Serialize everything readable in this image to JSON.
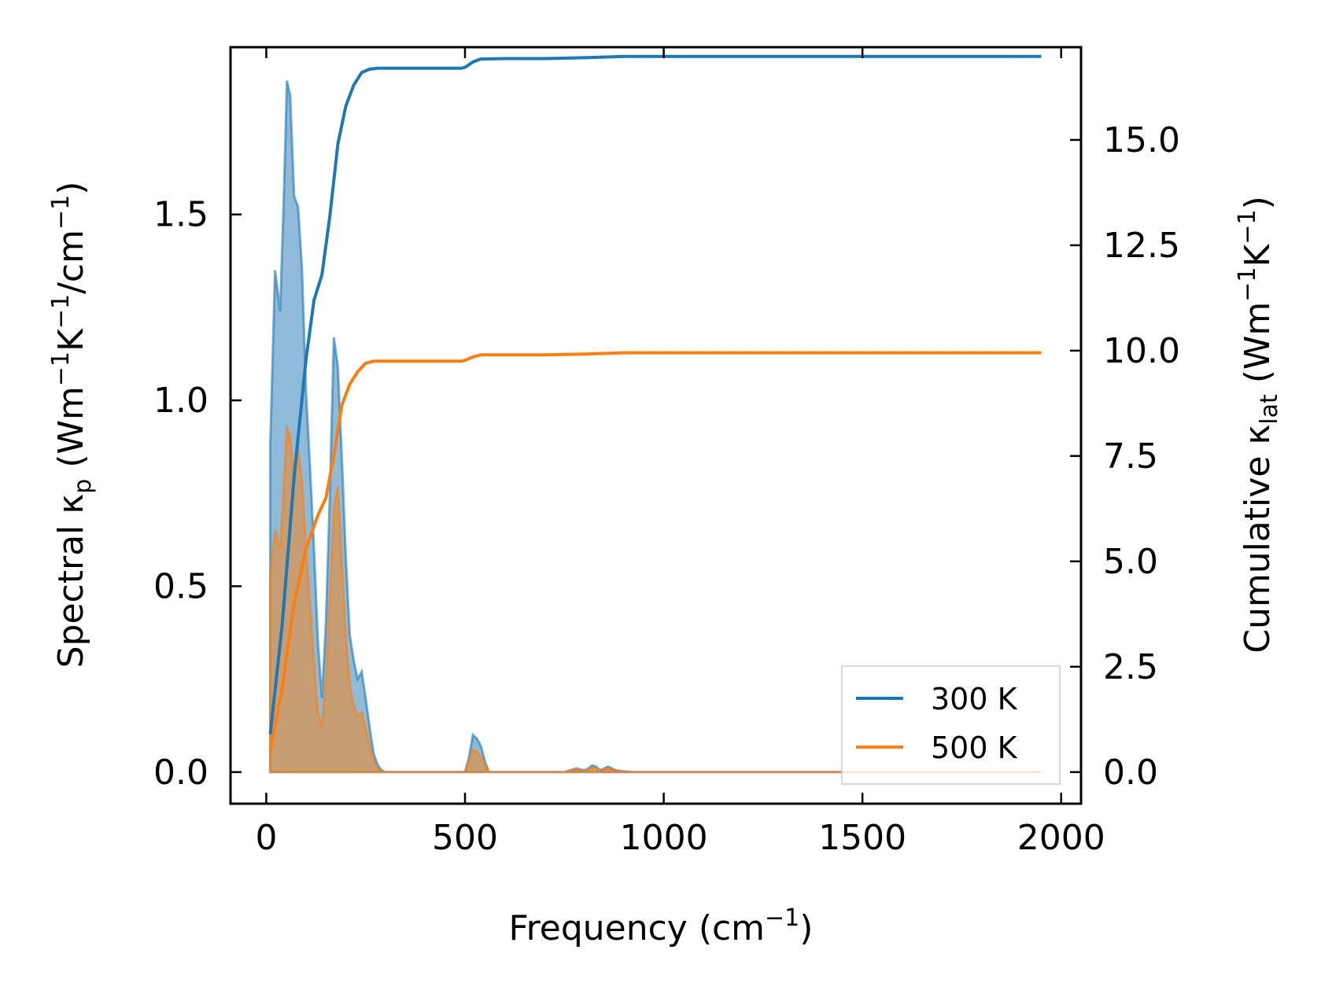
{
  "chart_data": {
    "type": "line",
    "xlabel": {
      "main": "Frequency (cm",
      "sup": "−1",
      "close": ")"
    },
    "ylabel_left": {
      "a": "Spectral κ",
      "sub": "p",
      "b": " (Wm",
      "sup1": "−1",
      "c": "K",
      "sup2": "−1",
      "d": "/cm",
      "sup3": "−1",
      "e": ")"
    },
    "ylabel_right": {
      "a": "Cumulative κ",
      "sub": "lat",
      "b": " (Wm",
      "sup1": "−1",
      "c": "K",
      "sup2": "−1",
      "d": ")"
    },
    "xlim": [
      -90,
      2050
    ],
    "ylim_left": [
      -0.085,
      1.95
    ],
    "ylim_right": [
      -0.75,
      17.2
    ],
    "x_ticks": [
      0,
      500,
      1000,
      1500,
      2000
    ],
    "x_tick_labels": [
      "0",
      "500",
      "1000",
      "1500",
      "2000"
    ],
    "y_left_ticks": [
      0.0,
      0.5,
      1.0,
      1.5
    ],
    "y_left_tick_labels": [
      "0.0",
      "0.5",
      "1.0",
      "1.5"
    ],
    "y_right_ticks": [
      0.0,
      2.5,
      5.0,
      7.5,
      10.0,
      12.5,
      15.0
    ],
    "y_right_tick_labels": [
      "0.0",
      "2.5",
      "5.0",
      "7.5",
      "10.0",
      "12.5",
      "15.0"
    ],
    "legend_position": "lower right",
    "series": [
      {
        "name": "300 K",
        "color": "#1f77b4",
        "spectral": {
          "axis": "left",
          "x": [
            10,
            22,
            35,
            45,
            52,
            60,
            70,
            80,
            90,
            100,
            110,
            120,
            130,
            140,
            150,
            160,
            170,
            180,
            190,
            200,
            210,
            220,
            230,
            240,
            250,
            260,
            270,
            280,
            290,
            300,
            500,
            510,
            520,
            530,
            540,
            550,
            560,
            750,
            780,
            800,
            810,
            820,
            830,
            840,
            850,
            860,
            870,
            880,
            900,
            920,
            1950
          ],
          "y": [
            0.88,
            1.35,
            1.24,
            1.58,
            1.86,
            1.82,
            1.55,
            1.52,
            1.35,
            1.02,
            0.82,
            0.6,
            0.35,
            0.2,
            0.4,
            0.75,
            1.17,
            1.09,
            0.85,
            0.58,
            0.37,
            0.3,
            0.25,
            0.27,
            0.2,
            0.12,
            0.05,
            0.02,
            0.005,
            0.0,
            0.0,
            0.04,
            0.1,
            0.09,
            0.07,
            0.03,
            0.0,
            0.0,
            0.01,
            0.005,
            0.01,
            0.018,
            0.015,
            0.005,
            0.01,
            0.015,
            0.01,
            0.005,
            0.002,
            0.0,
            0.0
          ]
        },
        "cumulative": {
          "axis": "right",
          "x": [
            10,
            40,
            70,
            100,
            120,
            140,
            160,
            180,
            200,
            220,
            240,
            260,
            280,
            300,
            400,
            490,
            500,
            520,
            540,
            600,
            700,
            800,
            900,
            1000,
            1500,
            1950
          ],
          "y": [
            0.9,
            3.5,
            7.0,
            9.8,
            11.2,
            11.8,
            13.2,
            14.9,
            15.8,
            16.3,
            16.6,
            16.68,
            16.7,
            16.7,
            16.7,
            16.7,
            16.72,
            16.85,
            16.92,
            16.93,
            16.93,
            16.95,
            16.98,
            16.98,
            16.98,
            16.98
          ]
        }
      },
      {
        "name": "500 K",
        "color": "#ff7f0e",
        "spectral": {
          "axis": "left",
          "x": [
            10,
            22,
            35,
            45,
            52,
            60,
            70,
            80,
            90,
            100,
            110,
            120,
            130,
            140,
            150,
            160,
            170,
            180,
            190,
            200,
            210,
            220,
            230,
            240,
            250,
            260,
            270,
            280,
            290,
            300,
            500,
            510,
            520,
            530,
            540,
            550,
            560,
            750,
            780,
            800,
            810,
            820,
            830,
            840,
            850,
            860,
            870,
            880,
            900,
            920,
            1950
          ],
          "y": [
            0.53,
            0.65,
            0.6,
            0.78,
            0.93,
            0.9,
            0.79,
            0.87,
            0.78,
            0.6,
            0.45,
            0.3,
            0.16,
            0.12,
            0.25,
            0.47,
            0.71,
            0.77,
            0.56,
            0.37,
            0.23,
            0.18,
            0.15,
            0.16,
            0.12,
            0.07,
            0.03,
            0.01,
            0.003,
            0.0,
            0.0,
            0.03,
            0.06,
            0.055,
            0.04,
            0.02,
            0.0,
            0.0,
            0.007,
            0.003,
            0.007,
            0.012,
            0.01,
            0.003,
            0.007,
            0.01,
            0.007,
            0.003,
            0.001,
            0.0,
            0.0
          ]
        },
        "cumulative": {
          "axis": "right",
          "x": [
            10,
            40,
            70,
            100,
            130,
            150,
            170,
            190,
            210,
            230,
            250,
            270,
            300,
            400,
            490,
            500,
            520,
            540,
            600,
            700,
            800,
            900,
            1000,
            1500,
            1950
          ],
          "y": [
            0.5,
            2.0,
            4.0,
            5.3,
            6.1,
            6.5,
            7.5,
            8.7,
            9.2,
            9.5,
            9.7,
            9.75,
            9.75,
            9.75,
            9.75,
            9.77,
            9.85,
            9.9,
            9.9,
            9.9,
            9.92,
            9.95,
            9.95,
            9.95,
            9.95
          ]
        }
      }
    ]
  }
}
